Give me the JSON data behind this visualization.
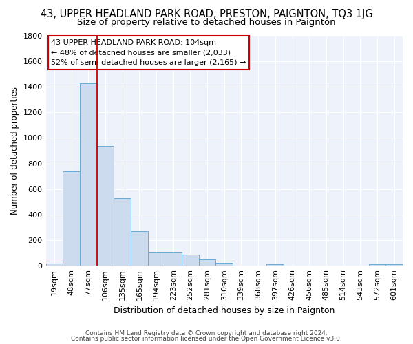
{
  "title": "43, UPPER HEADLAND PARK ROAD, PRESTON, PAIGNTON, TQ3 1JG",
  "subtitle": "Size of property relative to detached houses in Paignton",
  "xlabel": "Distribution of detached houses by size in Paignton",
  "ylabel": "Number of detached properties",
  "categories": [
    "19sqm",
    "48sqm",
    "77sqm",
    "106sqm",
    "135sqm",
    "165sqm",
    "194sqm",
    "223sqm",
    "252sqm",
    "281sqm",
    "310sqm",
    "339sqm",
    "368sqm",
    "397sqm",
    "426sqm",
    "456sqm",
    "485sqm",
    "514sqm",
    "543sqm",
    "572sqm",
    "601sqm"
  ],
  "values": [
    20,
    740,
    1425,
    935,
    530,
    270,
    105,
    105,
    90,
    50,
    25,
    0,
    0,
    15,
    0,
    0,
    0,
    0,
    0,
    15,
    15
  ],
  "bar_color": "#ccdcee",
  "bar_edge_color": "#6aaad4",
  "bar_edge_width": 0.7,
  "redline_x": 2.5,
  "redline_color": "#cc0000",
  "ylim": [
    0,
    1800
  ],
  "yticks": [
    0,
    200,
    400,
    600,
    800,
    1000,
    1200,
    1400,
    1600,
    1800
  ],
  "annotation_text": "43 UPPER HEADLAND PARK ROAD: 104sqm\n← 48% of detached houses are smaller (2,033)\n52% of semi-detached houses are larger (2,165) →",
  "annotation_box_color": "#ffffff",
  "annotation_box_edge": "#cc0000",
  "footer1": "Contains HM Land Registry data © Crown copyright and database right 2024.",
  "footer2": "Contains public sector information licensed under the Open Government Licence v3.0.",
  "bg_color": "#eef2fb",
  "grid_color": "#ffffff",
  "title_fontsize": 10.5,
  "subtitle_fontsize": 9.5,
  "xlabel_fontsize": 9,
  "ylabel_fontsize": 8.5,
  "tick_fontsize": 8,
  "annotation_fontsize": 8,
  "footer_fontsize": 6.5
}
